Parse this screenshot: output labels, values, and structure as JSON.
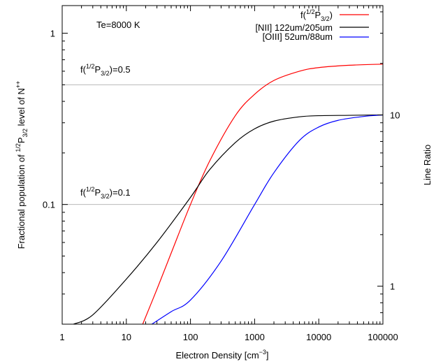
{
  "chart_data": {
    "type": "line",
    "x_axis": {
      "label": "Electron Density [cm",
      "label_sup": "−3",
      "label_end": "]",
      "scale": "log",
      "range": [
        1,
        100000
      ],
      "ticks": [
        1,
        10,
        100,
        1000,
        10000,
        100000
      ],
      "tick_labels": [
        "1",
        "10",
        "100",
        "1000",
        "10000",
        "100000"
      ]
    },
    "y_left": {
      "label_main": "Fractional population of ",
      "label_sup1": "1/2",
      "label_p": "P",
      "label_sub": "3/2",
      "label_mid": " level of N",
      "label_sup2": "++",
      "scale": "log",
      "range": [
        0.02,
        1.45
      ],
      "ticks": [
        0.1,
        1
      ],
      "tick_labels": [
        "0.1",
        "1"
      ]
    },
    "y_right": {
      "label": "Line Ratio",
      "scale": "log",
      "range": [
        0.6,
        43.5
      ],
      "ticks": [
        1,
        10
      ],
      "tick_labels": [
        "1",
        "10"
      ]
    },
    "annotations": {
      "temperature": "Te=8000 K",
      "ref_high": {
        "prefix": "f(",
        "sup": "1/2",
        "p": "P",
        "sub": "3/2",
        "suffix": ")=0.5",
        "y": 0.5
      },
      "ref_low": {
        "prefix": "f(",
        "sup": "1/2",
        "p": "P",
        "sub": "3/2",
        "suffix": ")=0.1",
        "y": 0.1
      }
    },
    "legend": {
      "placement": "top-right",
      "items": [
        {
          "prefix": "f(",
          "sup": "1/2",
          "p": "P",
          "sub": "3/2",
          "suffix": ")",
          "color": "#ff0000"
        },
        {
          "text": "[NII] 122um/205um",
          "color": "#000000"
        },
        {
          "text": "[OIII] 52um/88um",
          "color": "#0000ff"
        }
      ]
    },
    "series": [
      {
        "axis": "left",
        "color": "#ff0000",
        "x": [
          18,
          30,
          50,
          100,
          200,
          500,
          1000,
          2000,
          5000,
          10000,
          30000,
          100000
        ],
        "y": [
          0.02,
          0.032,
          0.052,
          0.1,
          0.18,
          0.33,
          0.44,
          0.53,
          0.6,
          0.63,
          0.65,
          0.66
        ]
      },
      {
        "axis": "right",
        "color": "#000000",
        "x": [
          1.5,
          3,
          10,
          30,
          100,
          200,
          500,
          1000,
          2000,
          5000,
          10000,
          30000,
          100000
        ],
        "y": [
          0.6,
          0.68,
          1.1,
          1.8,
          3.3,
          4.8,
          6.9,
          8.3,
          9.2,
          9.75,
          9.9,
          9.95,
          10.0
        ]
      },
      {
        "axis": "right",
        "color": "#0000ff",
        "x": [
          25,
          50,
          100,
          300,
          1000,
          2000,
          5000,
          10000,
          20000,
          50000,
          100000
        ],
        "y": [
          0.6,
          0.71,
          0.83,
          1.4,
          3.0,
          4.6,
          7.1,
          8.5,
          9.3,
          9.8,
          10.0
        ]
      }
    ]
  }
}
